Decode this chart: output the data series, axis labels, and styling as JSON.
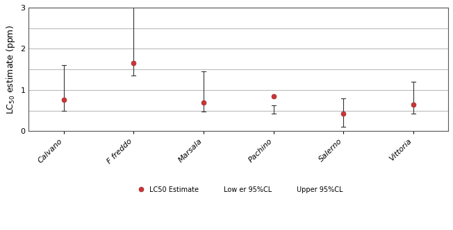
{
  "categories": [
    "Calvano",
    "F freddo",
    "Marsala",
    "Pachino",
    "Salerno",
    "Vittoria"
  ],
  "lc50": [
    0.76,
    1.65,
    0.7,
    0.85,
    0.42,
    0.65
  ],
  "lower_cl": [
    0.5,
    1.35,
    0.47,
    0.42,
    0.1,
    0.43
  ],
  "upper_cl": [
    1.6,
    3.02,
    1.45,
    0.62,
    0.8,
    1.2
  ],
  "ylabel": "LC$_{50}$ estimate (ppm)",
  "ylim": [
    0,
    3
  ],
  "yticks": [
    0,
    1,
    2,
    3
  ],
  "point_color": "#cc3333",
  "point_edge_color": "#993333",
  "errorbar_color": "#333333",
  "background_color": "#ffffff",
  "legend_labels": [
    "LC50 Estimate",
    "Low er 95%CL",
    "Upper 95%CL"
  ],
  "grid_color": "#bbbbbb",
  "figure_facecolor": "#ffffff",
  "extra_gridlines": [
    0.5,
    1.5,
    2.5
  ]
}
